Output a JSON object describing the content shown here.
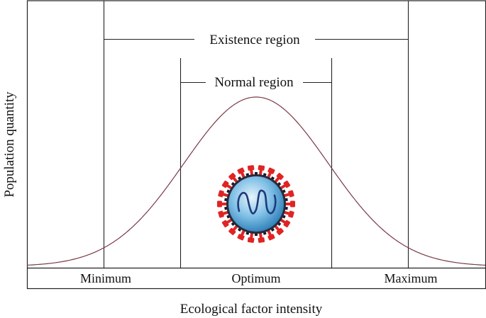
{
  "diagram": {
    "x_axis_label": "Ecological factor intensity",
    "y_axis_label": "Population quantity",
    "region_labels": {
      "existence": "Existence region",
      "normal": "Normal region"
    },
    "point_labels": {
      "minimum": "Minimum",
      "optimum": "Optimum",
      "maximum": "Maximum"
    },
    "curve_color": "#7b3a45",
    "icon": "virus-icon",
    "icon_colors": {
      "body": "#7fbfe6",
      "spikes": "#e02424",
      "rna": "#1f3a7a"
    }
  }
}
